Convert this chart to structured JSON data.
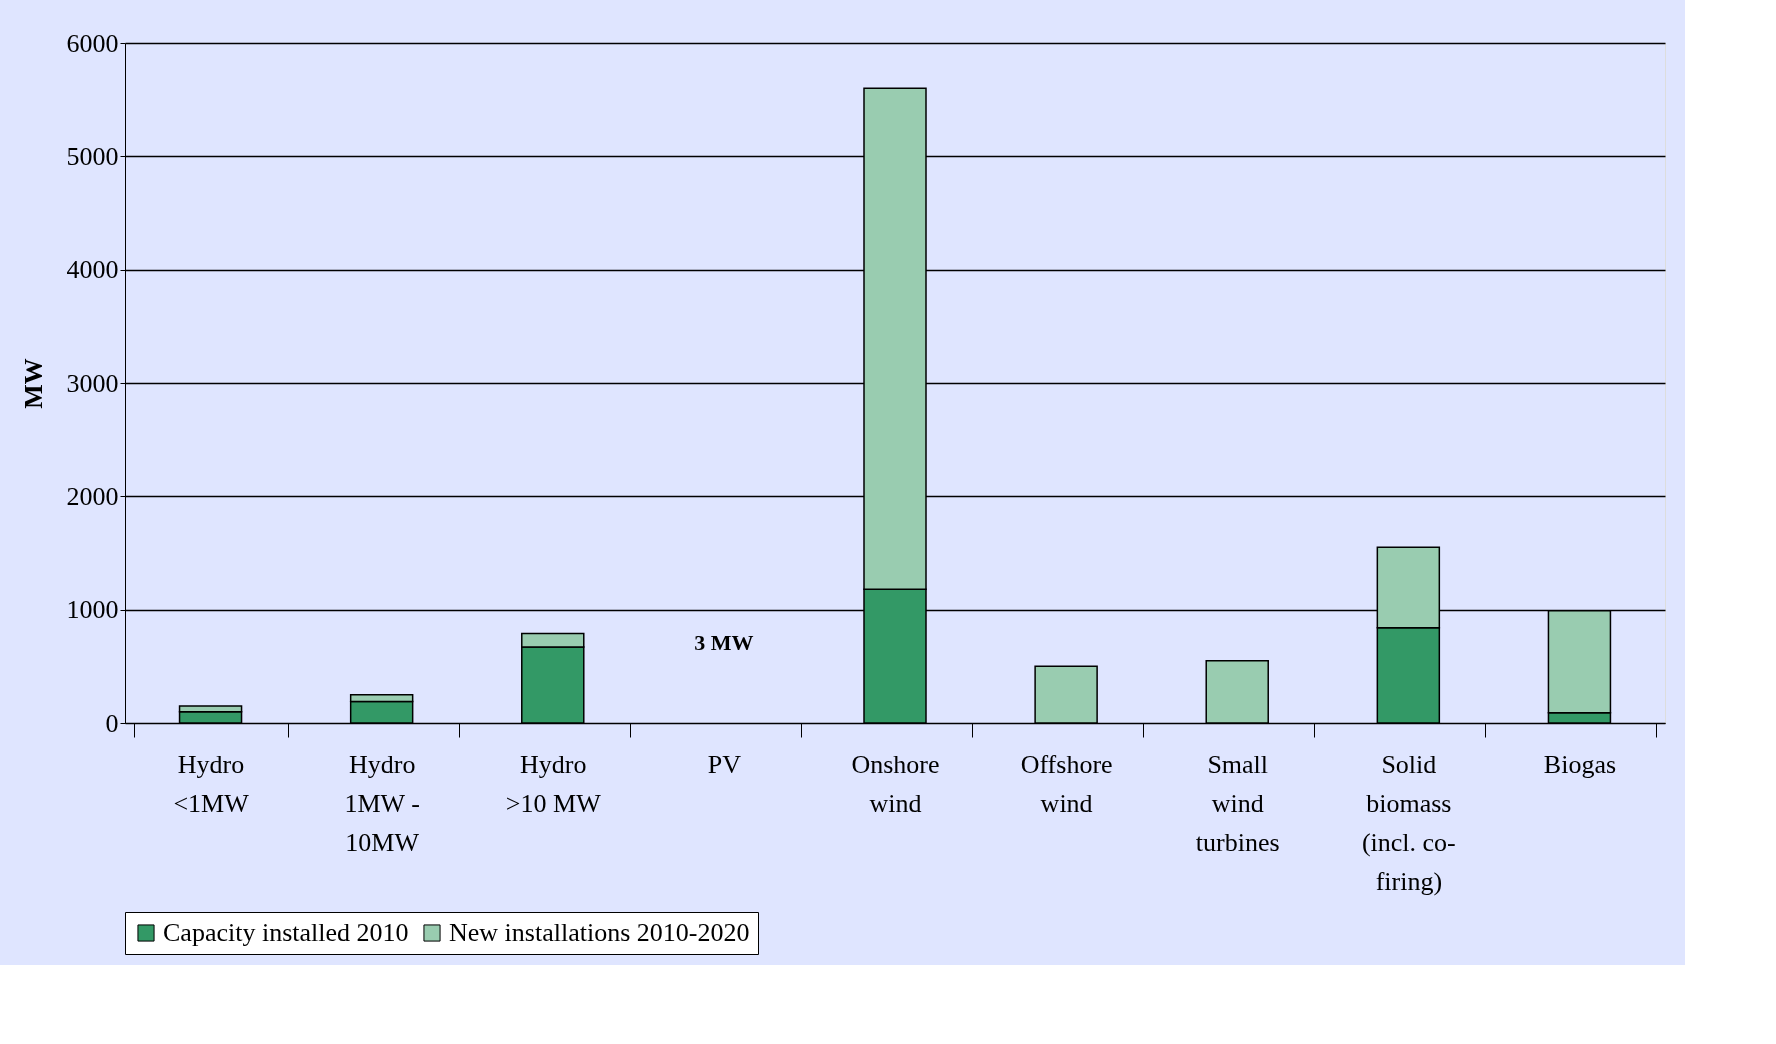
{
  "chart_data": {
    "type": "bar",
    "stacked": true,
    "ylabel": "MW",
    "categories": [
      "Hydro <1MW",
      "Hydro 1MW - 10MW",
      "Hydro >10 MW",
      "PV",
      "Onshore wind",
      "Offshore wind",
      "Small wind turbines",
      "Solid biomass (incl. co-firing)",
      "Biogas"
    ],
    "series": [
      {
        "name": "Capacity installed 2010",
        "color": "#339966",
        "values": [
          100,
          190,
          670,
          null,
          1180,
          0,
          0,
          840,
          90
        ]
      },
      {
        "name": "New installations 2010-2020",
        "color": "#99ccb0",
        "values": [
          50,
          60,
          120,
          null,
          4420,
          500,
          550,
          710,
          900
        ]
      }
    ],
    "ylim": [
      0,
      6000
    ],
    "yticks": [
      0,
      1000,
      2000,
      3000,
      4000,
      5000,
      6000
    ],
    "grid": "y",
    "legend": "bottom",
    "annotations": [
      "3 MW"
    ]
  }
}
